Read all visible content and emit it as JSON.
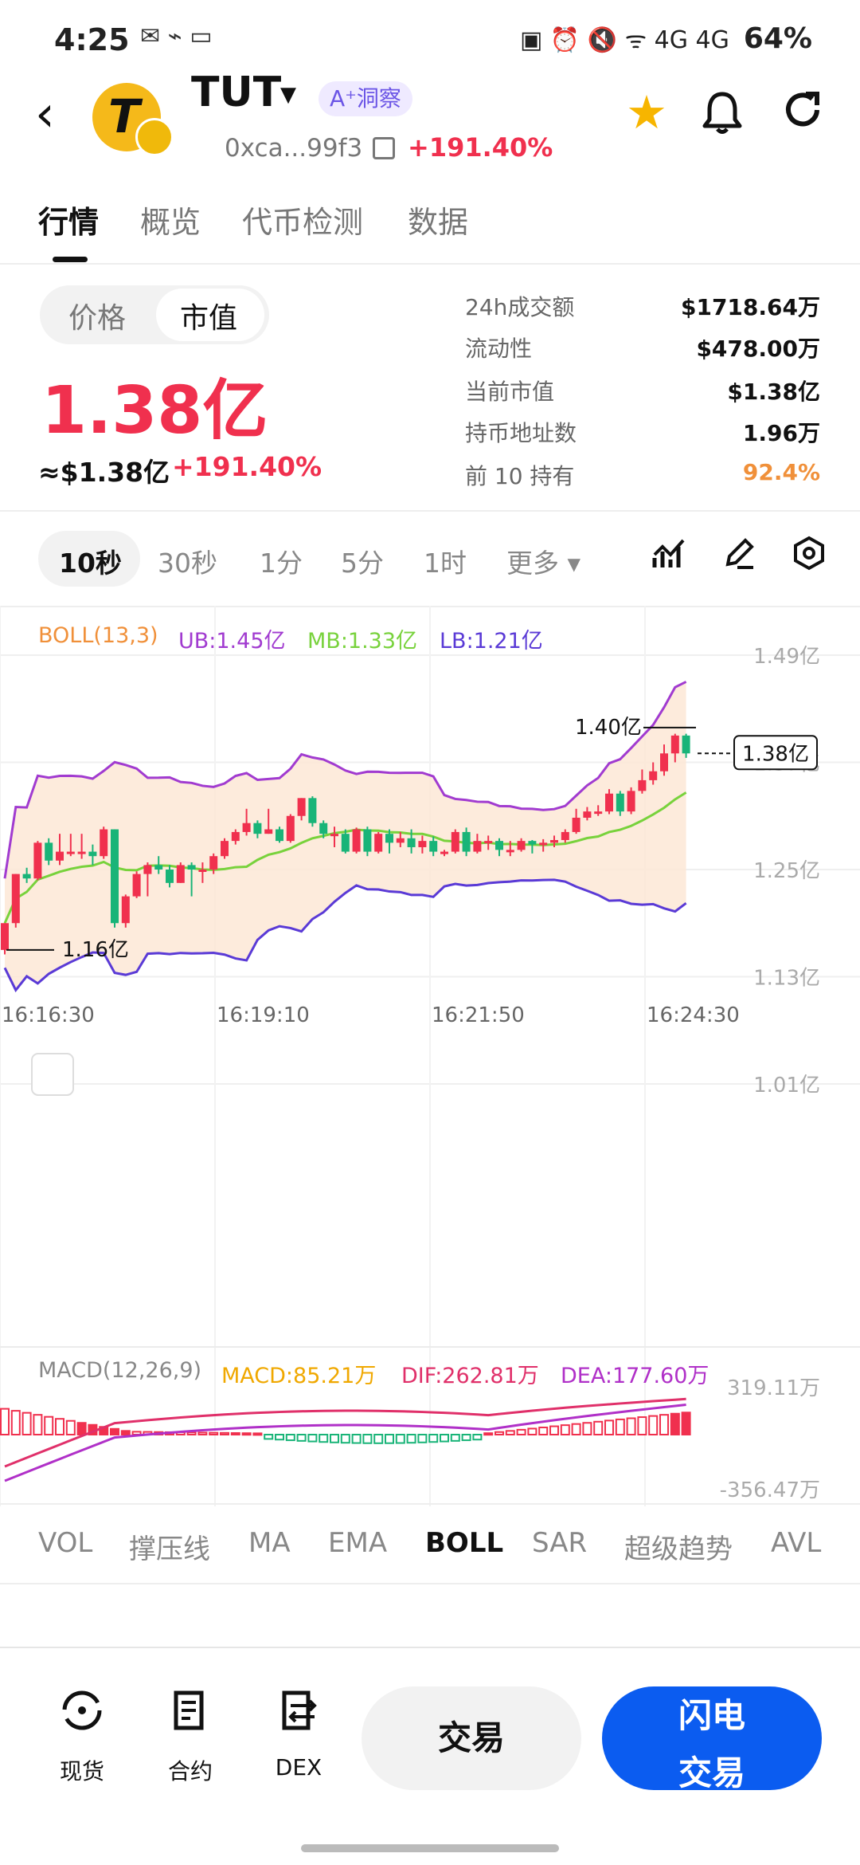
{
  "status_bar": {
    "time": "4:25",
    "icons": "✉ ⌁ ▭",
    "right_icons": "▣ ⏰ 🔇 ᯤ 4G 4G",
    "battery": "64%"
  },
  "header": {
    "token_symbol": "TUT",
    "logo_letter": "T",
    "ai_badge": "A⁺洞察",
    "address": "0xca...99f3",
    "change": "+191.40%"
  },
  "tabs": [
    "行情",
    "概览",
    "代币检测",
    "数据"
  ],
  "toggle": {
    "options": [
      "价格",
      "市值"
    ],
    "selected": "市值"
  },
  "main_value": "1.38亿",
  "approx_usd": "≈$1.38亿",
  "change": "+191.40%",
  "stats": [
    {
      "label": "24h成交额",
      "value": "$1718.64万"
    },
    {
      "label": "流动性",
      "value": "$478.00万"
    },
    {
      "label": "当前市值",
      "value": "$1.38亿"
    },
    {
      "label": "持币地址数",
      "value": "1.96万"
    },
    {
      "label": "前 10 持有",
      "value": "92.4%"
    }
  ],
  "colors": {
    "up": "#f0304e",
    "down": "#19b478",
    "accent": "#0b5cf0",
    "top10": "#f0903a",
    "upper_band": "#a13bd0",
    "mid_band": "#78d23c",
    "lower_band": "#5a3ad6",
    "boll_fill": "#fde8d6"
  },
  "intervals": [
    "10秒",
    "30秒",
    "1分",
    "5分",
    "1时",
    "更多 ▾"
  ],
  "selected_interval": "10秒",
  "toolbar_icons": [
    "indicator-icon",
    "draw-icon",
    "settings-icon"
  ],
  "chart_data": {
    "type": "candlestick",
    "boll": {
      "label": "BOLL(13,3)",
      "ub": "UB:1.45亿",
      "mb": "MB:1.33亿",
      "lb": "LB:1.21亿"
    },
    "y_ticks": [
      "1.49亿",
      "1.37亿",
      "1.25亿",
      "1.13亿",
      "1.01亿"
    ],
    "x_ticks": [
      "16:16:30",
      "16:19:10",
      "16:21:50",
      "16:24:30"
    ],
    "high_label": "1.40亿",
    "low_label": "1.16亿",
    "current_label": "1.38亿",
    "candles": [
      [
        1.16,
        1.19,
        1.155,
        1.19
      ],
      [
        1.19,
        1.245,
        1.185,
        1.245
      ],
      [
        1.245,
        1.24,
        1.235,
        1.252
      ],
      [
        1.24,
        1.28,
        1.238,
        1.282
      ],
      [
        1.28,
        1.26,
        1.255,
        1.285
      ],
      [
        1.26,
        1.27,
        1.255,
        1.29
      ],
      [
        1.27,
        1.27,
        1.265,
        1.29
      ],
      [
        1.27,
        1.27,
        1.262,
        1.29
      ],
      [
        1.27,
        1.265,
        1.255,
        1.278
      ],
      [
        1.265,
        1.295,
        1.262,
        1.298
      ],
      [
        1.295,
        1.19,
        1.185,
        1.295
      ],
      [
        1.19,
        1.22,
        1.185,
        1.222
      ],
      [
        1.22,
        1.245,
        1.218,
        1.248
      ],
      [
        1.245,
        1.255,
        1.22,
        1.258
      ],
      [
        1.255,
        1.25,
        1.245,
        1.265
      ],
      [
        1.25,
        1.235,
        1.23,
        1.255
      ],
      [
        1.235,
        1.255,
        1.235,
        1.258
      ],
      [
        1.255,
        1.25,
        1.22,
        1.258
      ],
      [
        1.25,
        1.25,
        1.235,
        1.258
      ],
      [
        1.25,
        1.265,
        1.245,
        1.268
      ],
      [
        1.265,
        1.282,
        1.262,
        1.285
      ],
      [
        1.282,
        1.292,
        1.278,
        1.295
      ],
      [
        1.292,
        1.302,
        1.288,
        1.318
      ],
      [
        1.302,
        1.29,
        1.285,
        1.305
      ],
      [
        1.29,
        1.295,
        1.29,
        1.318
      ],
      [
        1.295,
        1.282,
        1.28,
        1.298
      ],
      [
        1.282,
        1.31,
        1.28,
        1.312
      ],
      [
        1.31,
        1.33,
        1.305,
        1.33
      ],
      [
        1.33,
        1.302,
        1.298,
        1.332
      ],
      [
        1.302,
        1.29,
        1.285,
        1.305
      ],
      [
        1.29,
        1.29,
        1.275,
        1.298
      ],
      [
        1.29,
        1.27,
        1.268,
        1.295
      ],
      [
        1.27,
        1.295,
        1.268,
        1.297
      ],
      [
        1.295,
        1.27,
        1.265,
        1.298
      ],
      [
        1.27,
        1.29,
        1.268,
        1.292
      ],
      [
        1.29,
        1.28,
        1.268,
        1.295
      ],
      [
        1.28,
        1.285,
        1.275,
        1.292
      ],
      [
        1.285,
        1.275,
        1.268,
        1.295
      ],
      [
        1.275,
        1.282,
        1.268,
        1.288
      ],
      [
        1.282,
        1.27,
        1.265,
        1.287
      ],
      [
        1.27,
        1.27,
        1.265,
        1.272
      ],
      [
        1.27,
        1.292,
        1.268,
        1.295
      ],
      [
        1.292,
        1.27,
        1.265,
        1.297
      ],
      [
        1.27,
        1.282,
        1.268,
        1.29
      ],
      [
        1.282,
        1.282,
        1.272,
        1.288
      ],
      [
        1.282,
        1.272,
        1.265,
        1.285
      ],
      [
        1.272,
        1.272,
        1.265,
        1.282
      ],
      [
        1.272,
        1.282,
        1.27,
        1.285
      ],
      [
        1.282,
        1.278,
        1.268,
        1.283
      ],
      [
        1.278,
        1.28,
        1.27,
        1.284
      ],
      [
        1.28,
        1.283,
        1.275,
        1.288
      ],
      [
        1.283,
        1.292,
        1.28,
        1.295
      ],
      [
        1.292,
        1.308,
        1.29,
        1.318
      ],
      [
        1.308,
        1.315,
        1.305,
        1.32
      ],
      [
        1.315,
        1.315,
        1.31,
        1.322
      ],
      [
        1.315,
        1.335,
        1.312,
        1.34
      ],
      [
        1.335,
        1.315,
        1.31,
        1.338
      ],
      [
        1.315,
        1.338,
        1.312,
        1.342
      ],
      [
        1.338,
        1.35,
        1.335,
        1.362
      ],
      [
        1.35,
        1.36,
        1.345,
        1.37
      ],
      [
        1.36,
        1.38,
        1.355,
        1.39
      ],
      [
        1.38,
        1.4,
        1.37,
        1.402
      ],
      [
        1.4,
        1.38,
        1.375,
        1.402
      ]
    ],
    "macd": {
      "label": "MACD(12,26,9)",
      "macd": "MACD:85.21万",
      "dif": "DIF:262.81万",
      "dea": "DEA:177.60万",
      "ticks": [
        "319.11万",
        "-356.47万"
      ]
    }
  },
  "indicators": [
    "VOL",
    "撑压线",
    "MA",
    "EMA",
    "BOLL",
    "SAR",
    "超级趋势",
    "AVL"
  ],
  "selected_indicator": "BOLL",
  "bottom_nav": [
    {
      "label": "现货",
      "icon": "spot-icon",
      "glyph": "⟲"
    },
    {
      "label": "合约",
      "icon": "contract-icon",
      "glyph": "▤"
    },
    {
      "label": "DEX",
      "icon": "dex-icon",
      "glyph": "⇄"
    }
  ],
  "trade_label": "交易",
  "flash_label": [
    "闪电",
    "交易"
  ]
}
